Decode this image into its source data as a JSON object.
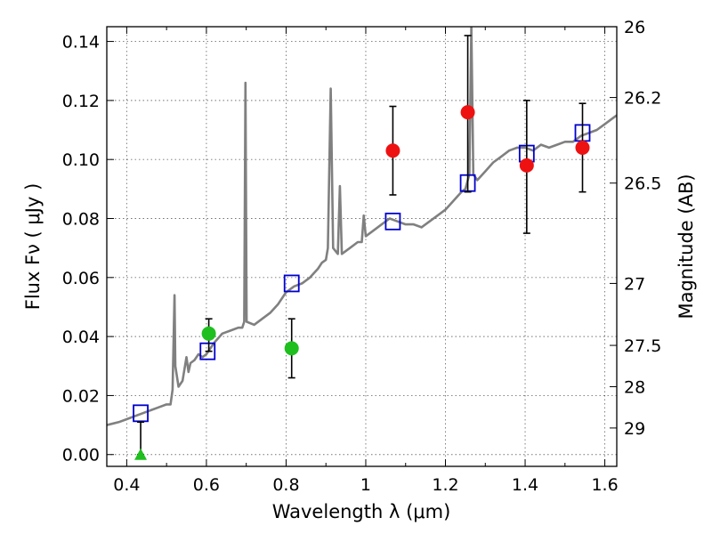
{
  "chart_data": {
    "type": "scatter",
    "xlabel": "Wavelength  λ (μm)",
    "ylabel": "Flux  Fν  ( μJy )",
    "ylabel_right": "Magnitude (AB)",
    "xlim": [
      0.35,
      1.63
    ],
    "ylim": [
      -0.004,
      0.145
    ],
    "grid": true,
    "x_ticks": [
      0.4,
      0.6,
      0.8,
      1.0,
      1.2,
      1.4,
      1.6
    ],
    "x_tick_labels": [
      "0.4",
      "0.6",
      "0.8",
      "1",
      "1.2",
      "1.4",
      "1.6"
    ],
    "y_ticks": [
      0.0,
      0.02,
      0.04,
      0.06,
      0.08,
      0.1,
      0.12,
      0.14
    ],
    "y_tick_labels": [
      "0.00",
      "0.02",
      "0.04",
      "0.06",
      "0.08",
      "0.10",
      "0.12",
      "0.14"
    ],
    "right_ticks": [
      {
        "flux": 0.145,
        "label": "26"
      },
      {
        "flux": 0.121,
        "label": "26.2"
      },
      {
        "flux": 0.092,
        "label": "26.5"
      },
      {
        "flux": 0.058,
        "label": "27"
      },
      {
        "flux": 0.037,
        "label": "27.5"
      },
      {
        "flux": 0.023,
        "label": "28"
      },
      {
        "flux": 0.009,
        "label": "29"
      }
    ],
    "colors": {
      "model": "#808080",
      "model_points": "#0000cc",
      "green": "#1fbf1f",
      "red": "#ee1111",
      "errorbar": "#000000"
    },
    "series": [
      {
        "type": "line",
        "points": [
          [
            0.35,
            0.01
          ],
          [
            0.38,
            0.011
          ],
          [
            0.4,
            0.012
          ],
          [
            0.42,
            0.013
          ],
          [
            0.44,
            0.014
          ],
          [
            0.46,
            0.015
          ],
          [
            0.48,
            0.016
          ],
          [
            0.5,
            0.017
          ],
          [
            0.51,
            0.017
          ],
          [
            0.515,
            0.022
          ],
          [
            0.52,
            0.054
          ],
          [
            0.522,
            0.03
          ],
          [
            0.53,
            0.023
          ],
          [
            0.54,
            0.025
          ],
          [
            0.55,
            0.033
          ],
          [
            0.555,
            0.028
          ],
          [
            0.56,
            0.031
          ],
          [
            0.57,
            0.032
          ],
          [
            0.58,
            0.034
          ],
          [
            0.59,
            0.033
          ],
          [
            0.6,
            0.034
          ],
          [
            0.62,
            0.038
          ],
          [
            0.64,
            0.041
          ],
          [
            0.66,
            0.042
          ],
          [
            0.68,
            0.043
          ],
          [
            0.69,
            0.043
          ],
          [
            0.695,
            0.045
          ],
          [
            0.698,
            0.126
          ],
          [
            0.701,
            0.045
          ],
          [
            0.72,
            0.044
          ],
          [
            0.74,
            0.046
          ],
          [
            0.76,
            0.048
          ],
          [
            0.78,
            0.051
          ],
          [
            0.8,
            0.055
          ],
          [
            0.82,
            0.057
          ],
          [
            0.84,
            0.058
          ],
          [
            0.86,
            0.06
          ],
          [
            0.88,
            0.063
          ],
          [
            0.89,
            0.065
          ],
          [
            0.9,
            0.066
          ],
          [
            0.905,
            0.07
          ],
          [
            0.912,
            0.124
          ],
          [
            0.918,
            0.07
          ],
          [
            0.93,
            0.068
          ],
          [
            0.935,
            0.091
          ],
          [
            0.94,
            0.068
          ],
          [
            0.96,
            0.07
          ],
          [
            0.98,
            0.072
          ],
          [
            0.99,
            0.072
          ],
          [
            0.995,
            0.081
          ],
          [
            1.0,
            0.074
          ],
          [
            1.02,
            0.076
          ],
          [
            1.04,
            0.078
          ],
          [
            1.06,
            0.08
          ],
          [
            1.08,
            0.079
          ],
          [
            1.1,
            0.078
          ],
          [
            1.12,
            0.078
          ],
          [
            1.14,
            0.077
          ],
          [
            1.16,
            0.079
          ],
          [
            1.18,
            0.081
          ],
          [
            1.2,
            0.083
          ],
          [
            1.22,
            0.086
          ],
          [
            1.24,
            0.089
          ],
          [
            1.25,
            0.09
          ],
          [
            1.26,
            0.095
          ],
          [
            1.265,
            0.145
          ],
          [
            1.27,
            0.095
          ],
          [
            1.28,
            0.093
          ],
          [
            1.3,
            0.096
          ],
          [
            1.32,
            0.099
          ],
          [
            1.34,
            0.101
          ],
          [
            1.36,
            0.103
          ],
          [
            1.38,
            0.104
          ],
          [
            1.4,
            0.104
          ],
          [
            1.42,
            0.103
          ],
          [
            1.44,
            0.105
          ],
          [
            1.46,
            0.104
          ],
          [
            1.48,
            0.105
          ],
          [
            1.5,
            0.106
          ],
          [
            1.52,
            0.106
          ],
          [
            1.54,
            0.108
          ],
          [
            1.56,
            0.109
          ],
          [
            1.58,
            0.11
          ],
          [
            1.6,
            0.112
          ],
          [
            1.62,
            0.114
          ],
          [
            1.63,
            0.115
          ]
        ]
      },
      {
        "type": "scatter",
        "marker": "square-open",
        "points": [
          [
            0.435,
            0.014
          ],
          [
            0.603,
            0.035
          ],
          [
            0.814,
            0.058
          ],
          [
            1.068,
            0.079
          ],
          [
            1.256,
            0.092
          ],
          [
            1.404,
            0.102
          ],
          [
            1.544,
            0.109
          ]
        ]
      },
      {
        "type": "scatter",
        "marker": "circle",
        "color": "green",
        "points": [
          {
            "x": 0.606,
            "y": 0.041,
            "err_low": 0.035,
            "err_high": 0.046
          },
          {
            "x": 0.814,
            "y": 0.036,
            "err_low": 0.026,
            "err_high": 0.046
          }
        ]
      },
      {
        "type": "scatter",
        "marker": "triangle-up",
        "color": "green",
        "points": [
          {
            "x": 0.435,
            "y": 0.0,
            "err_low": 0.0,
            "err_high": 0.011
          }
        ]
      },
      {
        "type": "scatter",
        "marker": "circle",
        "color": "red",
        "points": [
          {
            "x": 1.068,
            "y": 0.103,
            "err_low": 0.088,
            "err_high": 0.118
          },
          {
            "x": 1.256,
            "y": 0.116,
            "err_low": 0.089,
            "err_high": 0.142
          },
          {
            "x": 1.404,
            "y": 0.098,
            "err_low": 0.075,
            "err_high": 0.12
          },
          {
            "x": 1.544,
            "y": 0.104,
            "err_low": 0.089,
            "err_high": 0.119
          }
        ]
      }
    ]
  }
}
